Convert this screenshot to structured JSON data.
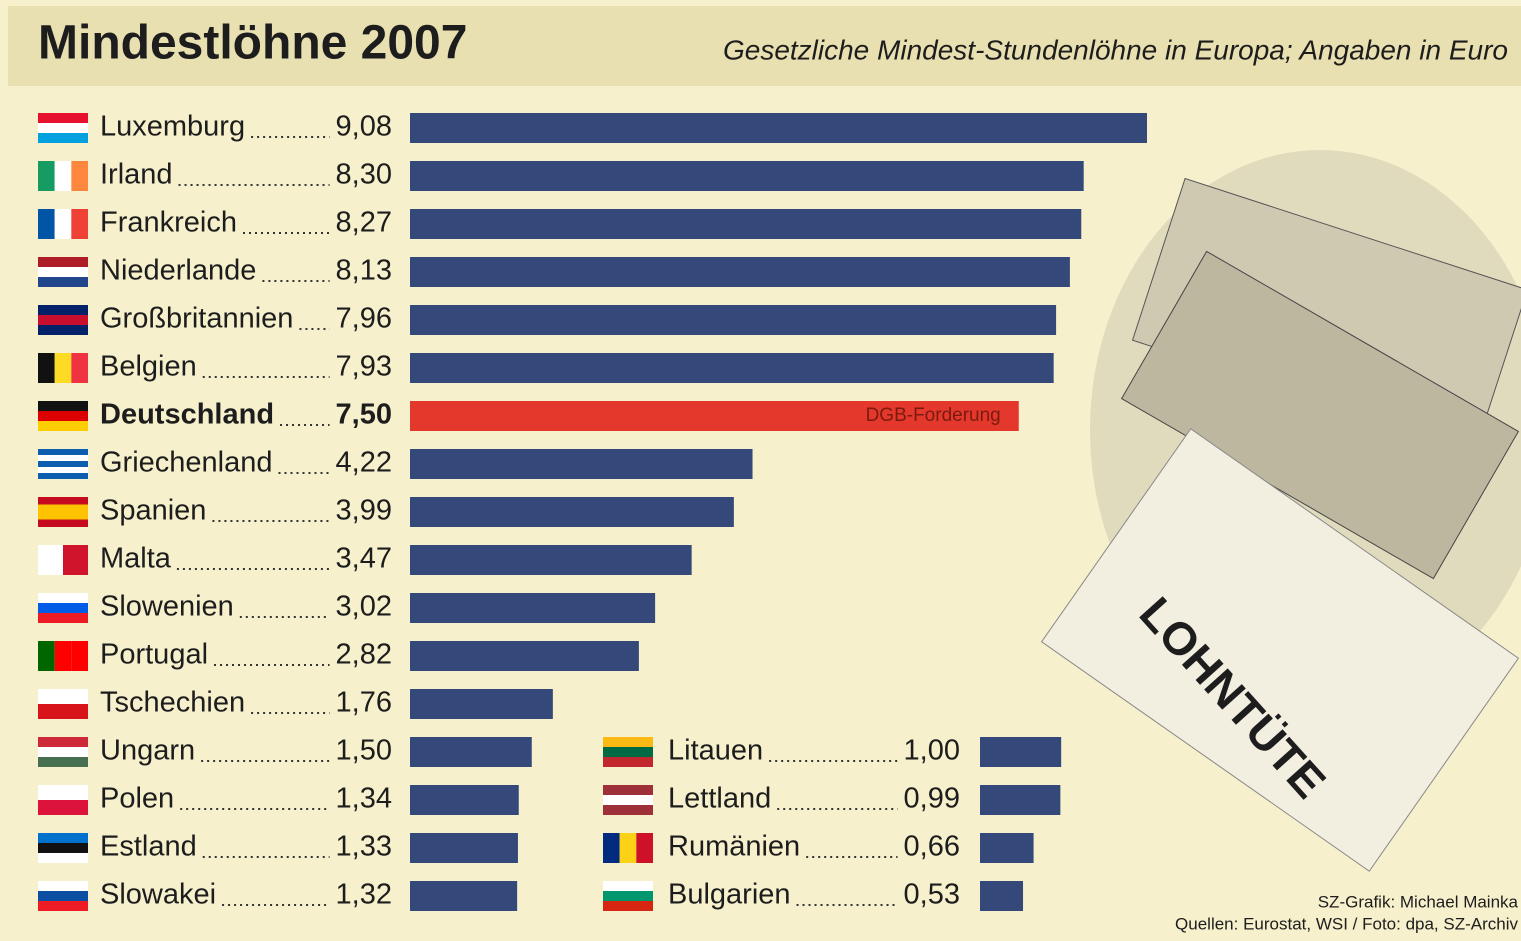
{
  "chart_data": {
    "type": "hbar",
    "title": "Mindestlöhne 2007",
    "subtitle": "Gesetzliche Mindest-Stundenlöhne in Europa; Angaben in Euro",
    "categories": [
      "Luxemburg",
      "Irland",
      "Frankreich",
      "Niederlande",
      "Großbritannien",
      "Belgien",
      "Deutschland",
      "Griechenland",
      "Spanien",
      "Malta",
      "Slowenien",
      "Portugal",
      "Tschechien",
      "Ungarn",
      "Polen",
      "Estland",
      "Slowakei",
      "Litauen",
      "Lettland",
      "Rumänien",
      "Bulgarien"
    ],
    "values": [
      9.08,
      8.3,
      8.27,
      8.13,
      7.96,
      7.93,
      7.5,
      4.22,
      3.99,
      3.47,
      3.02,
      2.82,
      1.76,
      1.5,
      1.34,
      1.33,
      1.32,
      1.0,
      0.99,
      0.66,
      0.53
    ],
    "value_labels": [
      "9,08",
      "8,30",
      "8,27",
      "8,13",
      "7,96",
      "7,93",
      "7,50",
      "4,22",
      "3,99",
      "3,47",
      "3,02",
      "2,82",
      "1,76",
      "1,50",
      "1,34",
      "1,33",
      "1,32",
      "1,00",
      "0,99",
      "0,66",
      "0,53"
    ],
    "colors": [
      "#34497a",
      "#34497a",
      "#34497a",
      "#34497a",
      "#34497a",
      "#34497a",
      "#e3382b",
      "#34497a",
      "#34497a",
      "#34497a",
      "#34497a",
      "#34497a",
      "#34497a",
      "#34497a",
      "#34497a",
      "#34497a",
      "#34497a",
      "#34497a",
      "#34497a",
      "#34497a",
      "#34497a"
    ],
    "annotation": "DGB-Forderung",
    "photo_text": "LOHNTÜTE",
    "credit": "SZ-Grafik: Michael Mainka",
    "source": "Quellen: Eurostat, WSI / Foto: dpa, SZ-Archiv"
  }
}
